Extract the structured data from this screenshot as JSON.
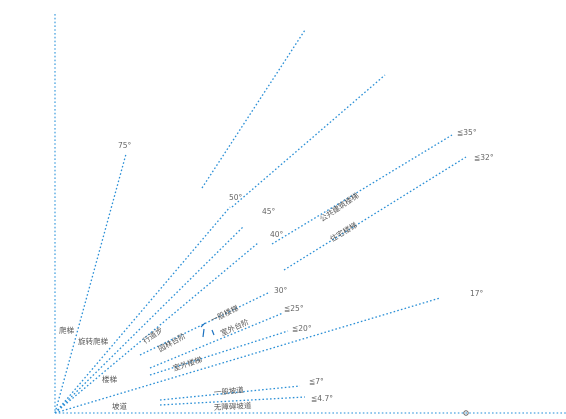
{
  "angles": {
    "a75": "75°",
    "a50": "50°",
    "a45": "45°",
    "a40": "40°",
    "a30": "30°",
    "a25": "≦25°",
    "a20": "≦20°",
    "a35": "≦35°",
    "a32": "≦32°",
    "a17": "17°",
    "a7": "≦7°",
    "a4": "≦4.7°"
  },
  "labels": {
    "ladder": "爬梯",
    "spiral_ladder": "旋转爬梯",
    "stair": "楼梯",
    "ramp": "坡道",
    "step_down": "行道步",
    "general_stair": "一般楼梯",
    "small_step": "室外台阶",
    "landscape_step": "园林台阶",
    "public_stair": "公共建筑楼梯",
    "residential_stair": "住宅楼梯",
    "outdoor_stair": "室外楼梯",
    "general_ramp": "一般坡道",
    "accessible_ramp": "无障碍坡道"
  }
}
